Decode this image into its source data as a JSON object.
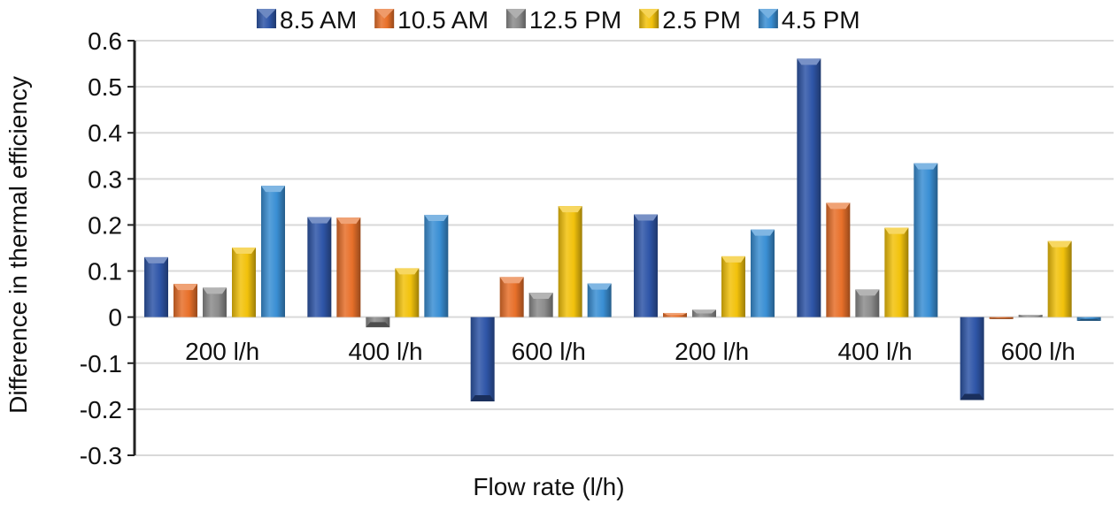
{
  "chart_data": {
    "type": "bar",
    "title": "",
    "xlabel": "Flow rate  (l/h)",
    "ylabel": "Difference in thermal efficiency",
    "ylim": [
      -0.3,
      0.6
    ],
    "yticks": [
      0.6,
      0.5,
      0.4,
      0.3,
      0.2,
      0.1,
      0,
      -0.1,
      -0.2,
      -0.3
    ],
    "ytick_labels": [
      "0.6",
      "0.5",
      "0.4",
      "0.3",
      "0.2",
      "0.1",
      "0",
      "-0.1",
      "-0.2",
      "-0.3"
    ],
    "grid": true,
    "legend_position": "top",
    "categories": [
      "200 l/h",
      "400 l/h",
      "600 l/h",
      "200 l/h",
      "400 l/h",
      "600 l/h"
    ],
    "series": [
      {
        "name": "8.5 AM",
        "color": "#2f56a8",
        "values": [
          0.13,
          0.217,
          -0.183,
          0.223,
          0.561,
          -0.18
        ]
      },
      {
        "name": "10.5 AM",
        "color": "#e8702a",
        "values": [
          0.072,
          0.216,
          0.087,
          0.009,
          0.248,
          -0.004
        ]
      },
      {
        "name": "12.5 PM",
        "color": "#8c8c8c",
        "values": [
          0.064,
          -0.022,
          0.053,
          0.016,
          0.06,
          0.005
        ]
      },
      {
        "name": "2.5 PM",
        "color": "#f2c20c",
        "values": [
          0.151,
          0.106,
          0.241,
          0.132,
          0.194,
          0.165
        ]
      },
      {
        "name": "4.5 PM",
        "color": "#3a8fd4",
        "values": [
          0.285,
          0.222,
          0.073,
          0.19,
          0.334,
          -0.008
        ]
      }
    ]
  }
}
